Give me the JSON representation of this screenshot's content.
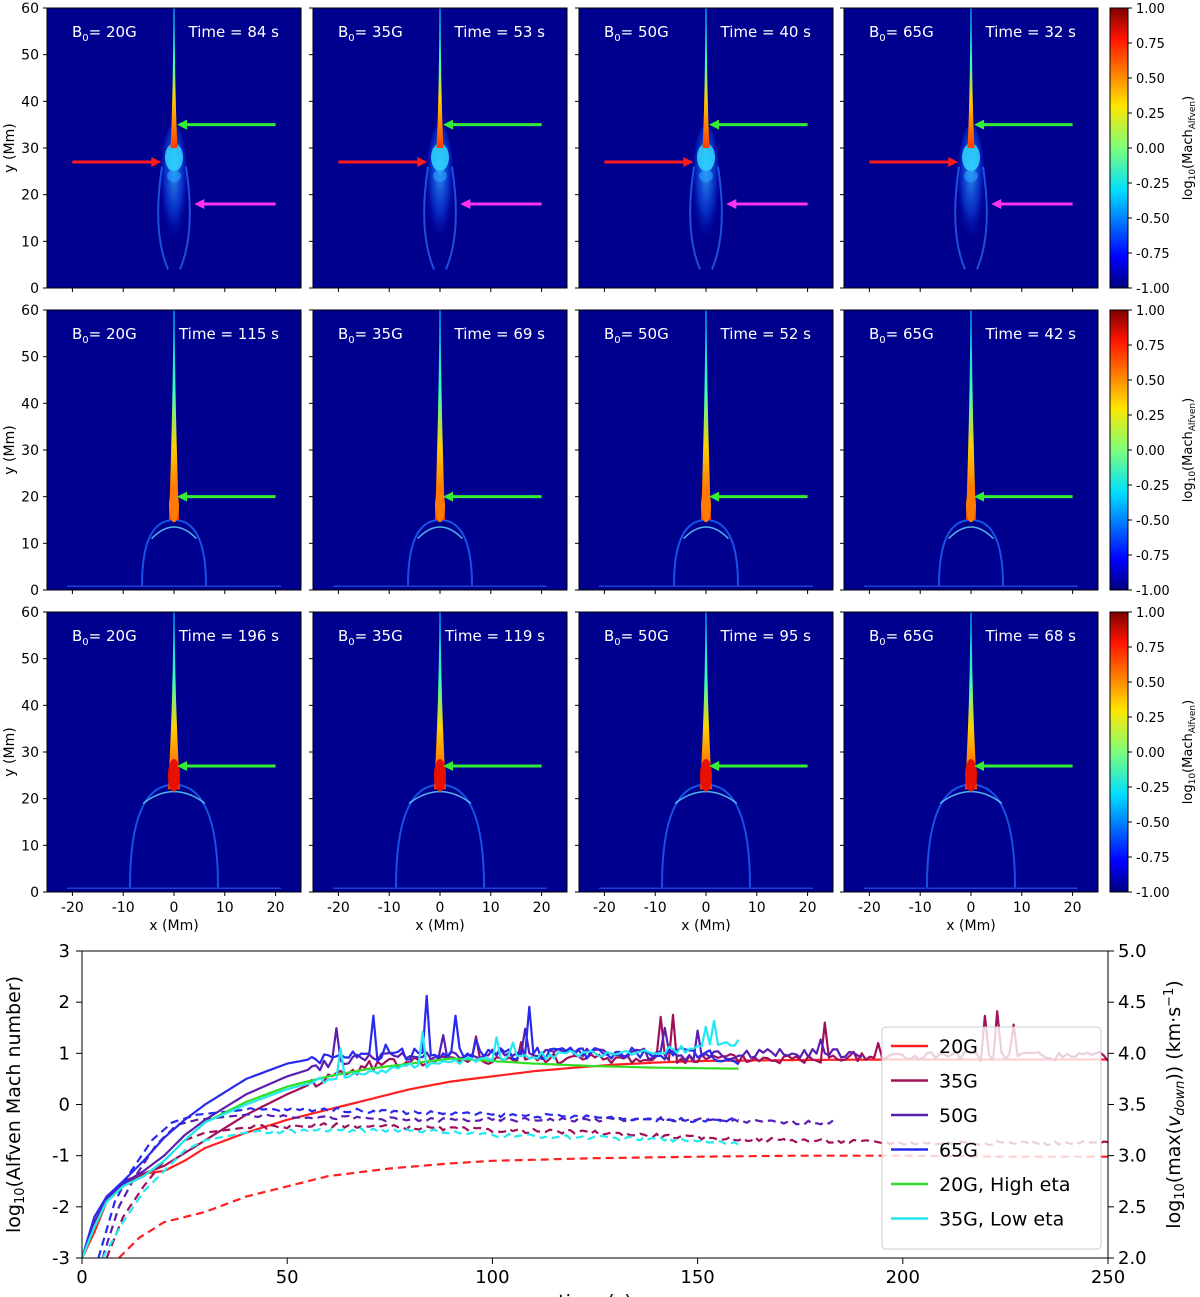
{
  "colors": {
    "panel_bg": "#00008f",
    "arrow_red": "#ff1a1a",
    "arrow_green": "#33ee33",
    "arrow_magenta": "#ff33ee"
  },
  "chart_data": [
    {
      "type": "heatmap",
      "panel_grid": {
        "rows": 3,
        "cols": 4
      },
      "xlabel": "x (Mm)",
      "ylabel": "y (Mm)",
      "xlim": [
        -25,
        25
      ],
      "ylim": [
        0,
        60
      ],
      "xticks": [
        -20,
        -10,
        0,
        10,
        20
      ],
      "yticks": [
        0,
        10,
        20,
        30,
        40,
        50,
        60
      ],
      "colorbar": {
        "label_main": "log",
        "label_sub": "10",
        "label_rest": "(Mach",
        "label_sub2": "Alfven",
        "label_end": ")",
        "range": [
          -1.0,
          1.0
        ],
        "ticks": [
          "1.00",
          "0.75",
          "0.50",
          "0.25",
          "0.00",
          "-0.25",
          "-0.50",
          "-0.75",
          "-1.00"
        ],
        "colormap": "jet"
      },
      "field_labels": [
        "20G",
        "35G",
        "50G",
        "65G"
      ],
      "b0_prefix": "B",
      "b0_sub": "0",
      "time_prefix": "Time = ",
      "time_unit": " s",
      "times": [
        [
          84,
          53,
          40,
          32
        ],
        [
          115,
          69,
          52,
          42
        ],
        [
          196,
          119,
          95,
          68
        ]
      ],
      "arrows": [
        [
          {
            "color": "green",
            "y": 35
          },
          {
            "color": "red",
            "y": 27
          },
          {
            "color": "magenta",
            "y": 18
          }
        ],
        [
          {
            "color": "green",
            "y": 20
          }
        ],
        [
          {
            "color": "green",
            "y": 27
          }
        ]
      ]
    },
    {
      "type": "line",
      "xlabel": "time (s)",
      "ylabel": "log$_{10}$(Alfven Mach number)",
      "ylabel_text": "log",
      "ylabel_sub": "10",
      "ylabel_rest": "(Alfven Mach number)",
      "y2label_text": "log",
      "y2label_sub": "10",
      "y2label_mid": "(max(",
      "y2label_v": "v",
      "y2label_vsub": "down",
      "y2label_end": ")) (km·s",
      "y2label_sup": "−1",
      "y2label_close": ")",
      "xlim": [
        0,
        250
      ],
      "ylim": [
        -3,
        3
      ],
      "y2lim": [
        2.0,
        5.0
      ],
      "xticks": [
        0,
        50,
        100,
        150,
        200,
        250
      ],
      "yticks": [
        -3,
        -2,
        -1,
        0,
        1,
        2,
        3
      ],
      "y2ticks": [
        "2.0",
        "2.5",
        "3.0",
        "3.5",
        "4.0",
        "4.5",
        "5.0"
      ],
      "legend_position": "center-right",
      "series": [
        {
          "name": "20G",
          "color": "#ff2020",
          "end": 250,
          "noise": 0.0,
          "solid": [
            [
              0,
              -3
            ],
            [
              3,
              -2.5
            ],
            [
              6,
              -1.9
            ],
            [
              10,
              -1.5
            ],
            [
              15,
              -1.35
            ],
            [
              20,
              -1.3
            ],
            [
              25,
              -1.1
            ],
            [
              30,
              -0.85
            ],
            [
              40,
              -0.55
            ],
            [
              50,
              -0.3
            ],
            [
              60,
              -0.1
            ],
            [
              70,
              0.1
            ],
            [
              80,
              0.3
            ],
            [
              90,
              0.45
            ],
            [
              100,
              0.55
            ],
            [
              110,
              0.65
            ],
            [
              120,
              0.72
            ],
            [
              130,
              0.78
            ],
            [
              140,
              0.82
            ],
            [
              150,
              0.85
            ],
            [
              175,
              0.87
            ],
            [
              200,
              0.88
            ],
            [
              225,
              0.88
            ],
            [
              250,
              0.88
            ]
          ],
          "dashed": [
            [
              9,
              -3
            ],
            [
              14,
              -2.6
            ],
            [
              20,
              -2.3
            ],
            [
              30,
              -2.1
            ],
            [
              40,
              -1.8
            ],
            [
              50,
              -1.6
            ],
            [
              60,
              -1.4
            ],
            [
              75,
              -1.25
            ],
            [
              90,
              -1.15
            ],
            [
              100,
              -1.1
            ],
            [
              125,
              -1.05
            ],
            [
              150,
              -1.02
            ],
            [
              175,
              -1.0
            ],
            [
              200,
              -1.0
            ],
            [
              225,
              -1.02
            ],
            [
              250,
              -1.02
            ]
          ]
        },
        {
          "name": "35G",
          "color": "#a0105a",
          "end": 250,
          "noise": 0.35,
          "solid": [
            [
              0,
              -3
            ],
            [
              3,
              -2.4
            ],
            [
              6,
              -1.9
            ],
            [
              10,
              -1.55
            ],
            [
              15,
              -1.35
            ],
            [
              20,
              -1.2
            ],
            [
              25,
              -0.95
            ],
            [
              30,
              -0.7
            ],
            [
              40,
              -0.2
            ],
            [
              50,
              0.2
            ],
            [
              60,
              0.55
            ],
            [
              70,
              0.75
            ],
            [
              80,
              0.85
            ],
            [
              100,
              0.9
            ],
            [
              125,
              0.9
            ],
            [
              150,
              0.9
            ],
            [
              175,
              0.9
            ],
            [
              200,
              0.95
            ],
            [
              225,
              0.95
            ],
            [
              250,
              0.95
            ]
          ],
          "dashed": [
            [
              6,
              -3
            ],
            [
              10,
              -2.2
            ],
            [
              15,
              -1.6
            ],
            [
              20,
              -1.1
            ],
            [
              25,
              -0.7
            ],
            [
              30,
              -0.55
            ],
            [
              40,
              -0.45
            ],
            [
              60,
              -0.4
            ],
            [
              80,
              -0.45
            ],
            [
              100,
              -0.5
            ],
            [
              125,
              -0.55
            ],
            [
              150,
              -0.65
            ],
            [
              175,
              -0.7
            ],
            [
              200,
              -0.75
            ],
            [
              225,
              -0.75
            ],
            [
              250,
              -0.75
            ]
          ]
        },
        {
          "name": "50G",
          "color": "#5a1fb0",
          "end": 190,
          "noise": 0.3,
          "solid": [
            [
              0,
              -3
            ],
            [
              3,
              -2.3
            ],
            [
              6,
              -1.85
            ],
            [
              10,
              -1.55
            ],
            [
              15,
              -1.3
            ],
            [
              20,
              -1.0
            ],
            [
              25,
              -0.6
            ],
            [
              30,
              -0.3
            ],
            [
              40,
              0.2
            ],
            [
              50,
              0.55
            ],
            [
              60,
              0.8
            ],
            [
              70,
              0.95
            ],
            [
              80,
              0.95
            ],
            [
              100,
              1.0
            ],
            [
              125,
              1.0
            ],
            [
              150,
              0.95
            ],
            [
              170,
              1.0
            ],
            [
              190,
              1.0
            ]
          ],
          "dashed": [
            [
              5,
              -3
            ],
            [
              9,
              -2.0
            ],
            [
              13,
              -1.4
            ],
            [
              18,
              -0.8
            ],
            [
              23,
              -0.4
            ],
            [
              28,
              -0.3
            ],
            [
              40,
              -0.2
            ],
            [
              60,
              -0.25
            ],
            [
              80,
              -0.3
            ],
            [
              100,
              -0.3
            ],
            [
              125,
              -0.3
            ],
            [
              150,
              -0.3
            ],
            [
              170,
              -0.35
            ],
            [
              183,
              -0.35
            ]
          ]
        },
        {
          "name": "65G",
          "color": "#2a2aee",
          "end": 160,
          "noise": 0.4,
          "solid": [
            [
              0,
              -3
            ],
            [
              3,
              -2.2
            ],
            [
              6,
              -1.8
            ],
            [
              10,
              -1.5
            ],
            [
              15,
              -1.1
            ],
            [
              20,
              -0.65
            ],
            [
              25,
              -0.3
            ],
            [
              30,
              0.0
            ],
            [
              40,
              0.5
            ],
            [
              50,
              0.8
            ],
            [
              60,
              0.95
            ],
            [
              70,
              0.95
            ],
            [
              80,
              1.0
            ],
            [
              100,
              1.0
            ],
            [
              125,
              1.0
            ],
            [
              145,
              1.0
            ],
            [
              160,
              0.9
            ]
          ],
          "dashed": [
            [
              4,
              -3
            ],
            [
              8,
              -1.9
            ],
            [
              12,
              -1.3
            ],
            [
              17,
              -0.7
            ],
            [
              22,
              -0.35
            ],
            [
              28,
              -0.2
            ],
            [
              40,
              -0.1
            ],
            [
              60,
              -0.1
            ],
            [
              80,
              -0.15
            ],
            [
              100,
              -0.2
            ],
            [
              125,
              -0.25
            ],
            [
              145,
              -0.3
            ],
            [
              160,
              -0.3
            ]
          ]
        },
        {
          "name": "20G, High eta",
          "color": "#33dd22",
          "end": 160,
          "noise": 0.0,
          "solid": [
            [
              0,
              -3
            ],
            [
              3,
              -2.4
            ],
            [
              6,
              -1.9
            ],
            [
              10,
              -1.6
            ],
            [
              15,
              -1.4
            ],
            [
              20,
              -1.1
            ],
            [
              25,
              -0.7
            ],
            [
              30,
              -0.35
            ],
            [
              40,
              0.05
            ],
            [
              50,
              0.35
            ],
            [
              60,
              0.55
            ],
            [
              70,
              0.7
            ],
            [
              80,
              0.8
            ],
            [
              90,
              0.9
            ],
            [
              100,
              0.85
            ],
            [
              110,
              0.8
            ],
            [
              125,
              0.75
            ],
            [
              140,
              0.72
            ],
            [
              160,
              0.7
            ]
          ],
          "dashed": []
        },
        {
          "name": "35G, Low eta",
          "color": "#22e8f0",
          "end": 160,
          "noise": 0.25,
          "solid": [
            [
              0,
              -3
            ],
            [
              3,
              -2.4
            ],
            [
              6,
              -1.9
            ],
            [
              10,
              -1.6
            ],
            [
              15,
              -1.4
            ],
            [
              20,
              -1.1
            ],
            [
              25,
              -0.7
            ],
            [
              30,
              -0.35
            ],
            [
              40,
              0.0
            ],
            [
              50,
              0.3
            ],
            [
              60,
              0.5
            ],
            [
              70,
              0.65
            ],
            [
              80,
              0.75
            ],
            [
              90,
              0.85
            ],
            [
              100,
              0.9
            ],
            [
              125,
              1.0
            ],
            [
              150,
              1.1
            ],
            [
              160,
              1.2
            ]
          ],
          "dashed": [
            [
              5,
              -3
            ],
            [
              10,
              -2.3
            ],
            [
              15,
              -1.7
            ],
            [
              20,
              -1.3
            ],
            [
              25,
              -0.9
            ],
            [
              30,
              -0.7
            ],
            [
              40,
              -0.55
            ],
            [
              60,
              -0.5
            ],
            [
              80,
              -0.5
            ],
            [
              100,
              -0.6
            ],
            [
              125,
              -0.65
            ],
            [
              150,
              -0.7
            ],
            [
              160,
              -0.75
            ]
          ]
        }
      ]
    }
  ]
}
